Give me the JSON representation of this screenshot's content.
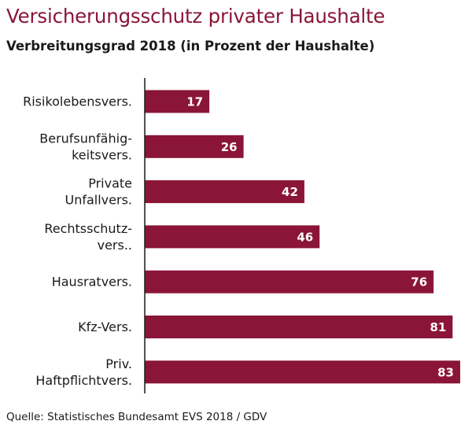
{
  "title": "Versicherungsschutz privater Haushalte",
  "subtitle": "Verbreitungsgrad 2018 (in Prozent der Haushalte)",
  "source": "Quelle: Statistisches Bundesamt EVS 2018 / GDV",
  "colors": {
    "bar": "#8a1538",
    "title": "#8a1538",
    "axis": "#1a1a1a"
  },
  "chart_data": {
    "type": "bar",
    "orientation": "horizontal",
    "categories": [
      [
        "Risikolebensvers."
      ],
      [
        "Berufsunfähig-",
        "keitsvers."
      ],
      [
        "Private",
        "Unfallvers."
      ],
      [
        "Rechtsschutz-",
        "vers.."
      ],
      [
        "Hausratvers."
      ],
      [
        "Kfz-Vers."
      ],
      [
        "Priv.",
        "Haftpflichtvers."
      ]
    ],
    "values": [
      17,
      26,
      42,
      46,
      76,
      81,
      83
    ],
    "xlim": [
      0,
      83
    ],
    "data_labels": true,
    "grid": false,
    "legend": "none"
  }
}
